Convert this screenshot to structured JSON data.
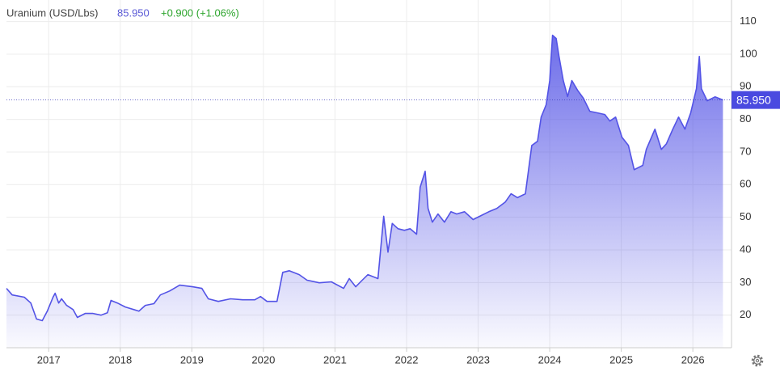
{
  "chart_data": {
    "type": "area",
    "title": "Uranium (USD/Lbs)",
    "price": "85.950",
    "change": "+0.900 (+1.06%)",
    "x": [
      2016.41,
      2016.49,
      2016.66,
      2016.75,
      2016.83,
      2016.91,
      2016.98,
      2017.06,
      2017.09,
      2017.14,
      2017.18,
      2017.25,
      2017.34,
      2017.4,
      2017.51,
      2017.62,
      2017.73,
      2017.82,
      2017.87,
      2017.96,
      2018.07,
      2018.19,
      2018.26,
      2018.35,
      2018.47,
      2018.56,
      2018.69,
      2018.83,
      2019.01,
      2019.14,
      2019.23,
      2019.37,
      2019.54,
      2019.71,
      2019.88,
      2019.96,
      2020.05,
      2020.19,
      2020.27,
      2020.36,
      2020.5,
      2020.61,
      2020.78,
      2020.95,
      2021.12,
      2021.2,
      2021.29,
      2021.38,
      2021.46,
      2021.6,
      2021.68,
      2021.74,
      2021.8,
      2021.88,
      2021.97,
      2022.05,
      2022.14,
      2022.19,
      2022.26,
      2022.3,
      2022.36,
      2022.44,
      2022.53,
      2022.62,
      2022.7,
      2022.81,
      2022.93,
      2023.04,
      2023.15,
      2023.26,
      2023.38,
      2023.46,
      2023.55,
      2023.66,
      2023.75,
      2023.83,
      2023.88,
      2023.95,
      2024.0,
      2024.04,
      2024.09,
      2024.13,
      2024.19,
      2024.25,
      2024.31,
      2024.39,
      2024.47,
      2024.56,
      2024.67,
      2024.77,
      2024.84,
      2024.92,
      2025.01,
      2025.1,
      2025.18,
      2025.3,
      2025.35,
      2025.47,
      2025.56,
      2025.63,
      2025.72,
      2025.8,
      2025.89,
      2025.97,
      2026.05,
      2026.09,
      2026.12,
      2026.2,
      2026.31,
      2026.42
    ],
    "values": [
      28.2,
      26.2,
      25.5,
      23.7,
      18.8,
      18.3,
      21.2,
      25.5,
      26.7,
      23.7,
      25,
      23,
      21.7,
      19.3,
      20.5,
      20.5,
      20,
      20.7,
      24.5,
      23.7,
      22.5,
      21.7,
      21.2,
      23,
      23.5,
      26.2,
      27.4,
      29.2,
      28.7,
      28.2,
      25,
      24.2,
      25,
      24.7,
      24.7,
      25.7,
      24.2,
      24.2,
      33.1,
      33.6,
      32.4,
      30.7,
      29.9,
      30.2,
      28.2,
      31.2,
      28.7,
      30.7,
      32.4,
      31.2,
      50.3,
      39.3,
      48.1,
      46.5,
      46,
      46.5,
      44.8,
      59.2,
      64.1,
      52.7,
      48.5,
      51,
      48.5,
      51.7,
      51,
      51.7,
      49.3,
      50.5,
      51.7,
      52.7,
      54.7,
      57.2,
      56,
      57.2,
      72,
      73.3,
      80.7,
      84.5,
      91.9,
      105.8,
      104.8,
      99.3,
      91.9,
      87,
      91.9,
      88.9,
      86.5,
      82.5,
      82,
      81.5,
      79.5,
      80.7,
      74.5,
      72,
      64.6,
      65.9,
      70.8,
      77,
      70.8,
      72.5,
      77,
      80.7,
      77,
      82,
      89.4,
      99.3,
      89.4,
      85.7,
      86.9,
      85.95
    ],
    "color": "#5353e6",
    "xlim": [
      2016.41,
      2026.54
    ],
    "ylim": [
      10,
      116.6
    ],
    "xticks": [
      2017,
      2018,
      2019,
      2020,
      2021,
      2022,
      2023,
      2024,
      2025,
      2026
    ],
    "yticks": [
      20,
      30,
      40,
      50,
      60,
      70,
      80,
      90,
      100,
      110
    ],
    "grid": true
  }
}
